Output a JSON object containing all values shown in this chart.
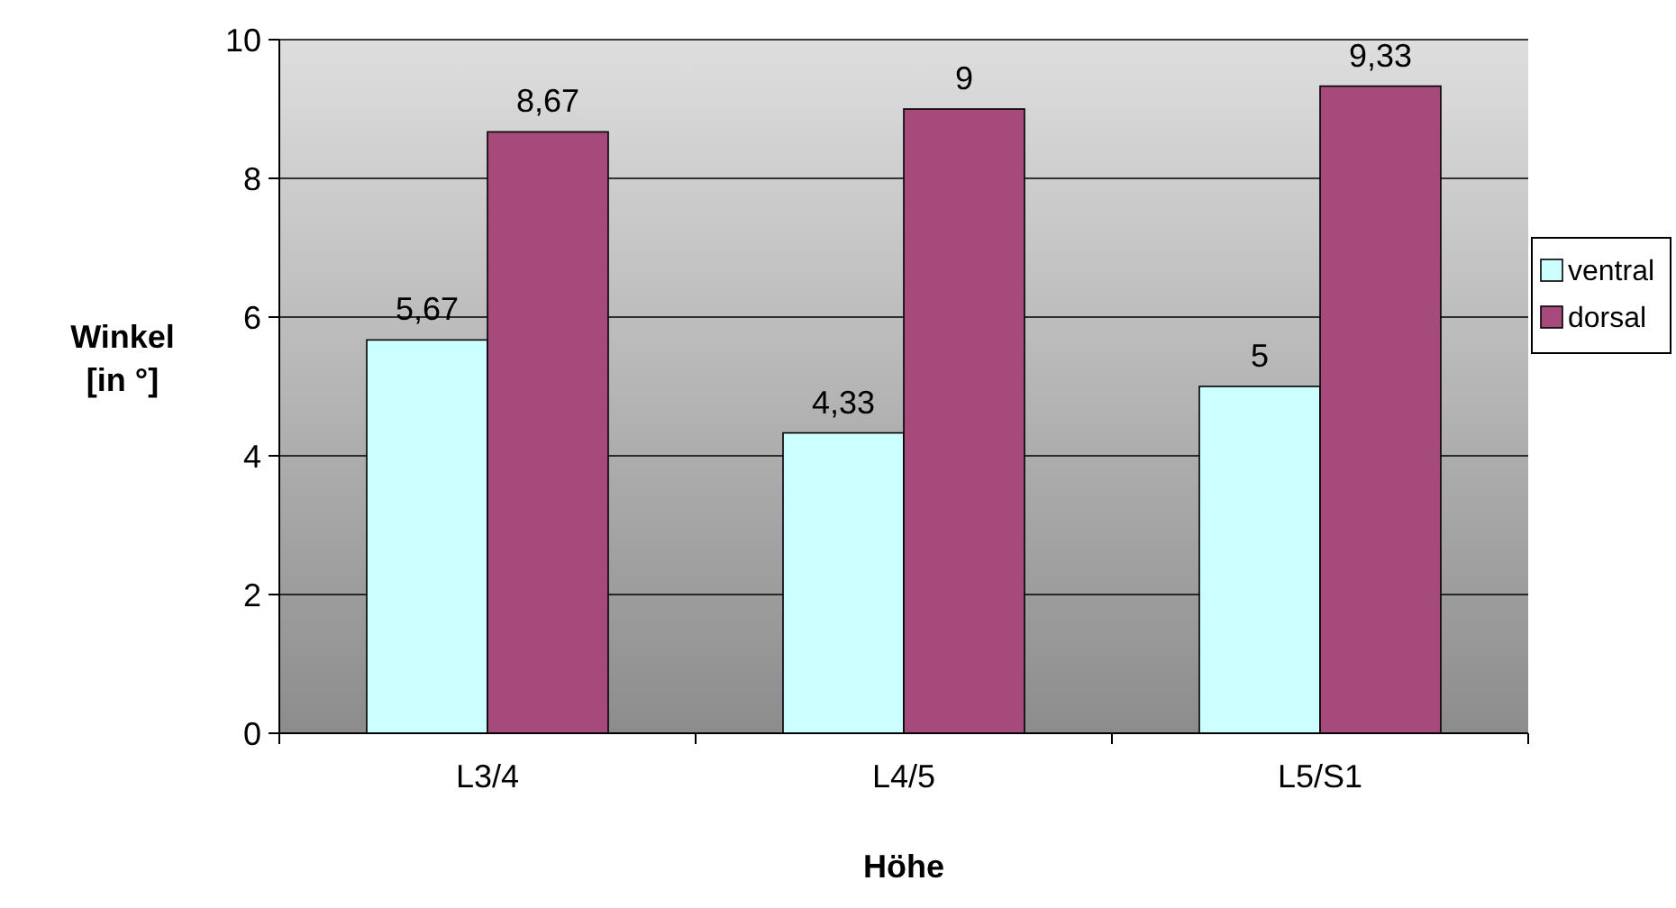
{
  "chart_data": {
    "type": "bar",
    "xlabel": "Höhe",
    "ylabel": "Winkel\n[in °]",
    "categories": [
      "L3/4",
      "L4/5",
      "L5/S1"
    ],
    "series": [
      {
        "name": "ventral",
        "color": "#ccffff",
        "values": [
          5.67,
          4.33,
          5
        ],
        "value_labels": [
          "5,67",
          "4,33",
          "5"
        ]
      },
      {
        "name": "dorsal",
        "color": "#a64a7b",
        "values": [
          8.67,
          9,
          9.33
        ],
        "value_labels": [
          "8,67",
          "9",
          "9,33"
        ]
      }
    ],
    "ylim": [
      0,
      10
    ],
    "yticks": [
      0,
      2,
      4,
      6,
      8,
      10
    ],
    "grid": "y",
    "legend": "right"
  }
}
